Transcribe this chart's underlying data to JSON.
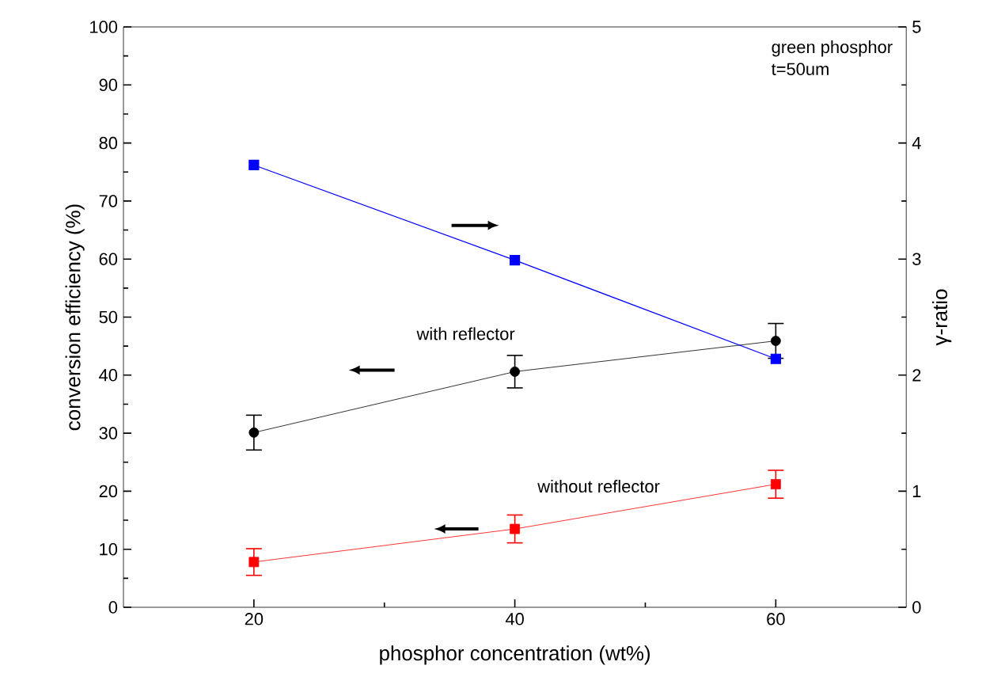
{
  "chart_data": {
    "type": "line",
    "xlabel": "phosphor concentration (wt%)",
    "ylabel": "conversion efficiency (%)",
    "y2label": "γ-ratio",
    "x": [
      20,
      40,
      60
    ],
    "xlim": [
      10,
      70
    ],
    "xticks": [
      20,
      40,
      60
    ],
    "ylim": [
      0,
      100
    ],
    "yticks": [
      0,
      10,
      20,
      30,
      40,
      50,
      60,
      70,
      80,
      90,
      100
    ],
    "y2lim": [
      0,
      5
    ],
    "y2ticks": [
      0,
      1,
      2,
      3,
      4,
      5
    ],
    "annotations": [
      "green phosphor",
      "t=50um"
    ],
    "series": [
      {
        "name": "with reflector",
        "color": "#000000",
        "marker": "circle",
        "values": [
          30.1,
          40.6,
          45.9
        ],
        "errors": [
          3,
          2.8,
          3
        ]
      },
      {
        "name": "without reflector",
        "color": "#ff0000",
        "marker": "square",
        "values": [
          7.8,
          13.5,
          21.2
        ],
        "errors": [
          2.3,
          2.4,
          2.4
        ]
      },
      {
        "color": "#0000ff",
        "marker": "square",
        "axis": "y2",
        "values": [
          3.81,
          2.99,
          2.14
        ]
      }
    ]
  }
}
